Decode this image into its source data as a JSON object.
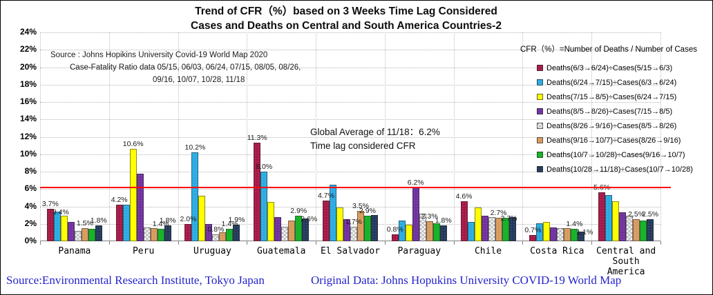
{
  "title": {
    "line1": "Trend of CFR（%）based on 3 Weeks Time Lag Considered",
    "line2": "Cases and Deaths on Central and South America Countries-2"
  },
  "source_note": {
    "line1": "Source : Johns Hopikins University   Covid-19 World Map 2020",
    "line2": "Case-Fatality Ratio data   05/15, 06/03, 06/24,  07/15, 08/05, 08/26,",
    "line3": "09/16, 10/07, 10/28,  11/18"
  },
  "annotation": {
    "line1": "Global Average of 11/18：6.2%",
    "line2": "Time lag considered CFR"
  },
  "legend": {
    "title": "CFR（%）=Number of  Deaths / Number of Cases"
  },
  "footer": {
    "left": "Source:Environmental Research Institute, Tokyo Japan",
    "right": "Original Data: Johns Hopukins University COVID-19 World Map",
    "color": "#2323CC"
  },
  "chart_data": {
    "type": "bar",
    "title": "Trend of CFR（%）based on 3 Weeks Time Lag Considered Cases and Deaths on Central and South America Countries-2",
    "ylabel": "CFR (%)",
    "ylim": [
      0,
      24
    ],
    "ytick_step": 2,
    "ytick_labels": [
      "0%",
      "2%",
      "4%",
      "6%",
      "8%",
      "10%",
      "12%",
      "14%",
      "16%",
      "18%",
      "20%",
      "22%",
      "24%"
    ],
    "grid": true,
    "legend_position": "right",
    "reference_line": {
      "value": 6.2,
      "color": "#FF0000",
      "label": "Global Average of 11/18：6.2% Time lag considered CFR"
    },
    "categories": [
      "Panama",
      "Peru",
      "Uruguay",
      "Guatemala",
      "El Salvador",
      "Paraguay",
      "Chile",
      "Costa Rica",
      "Central and South America"
    ],
    "categories_display": [
      "Panama",
      "Peru",
      "Uruguay",
      "Guatemala",
      "El Salvador",
      "Paraguay",
      "Chile",
      "Costa Rica",
      "Central and\nSouth\nAmerica"
    ],
    "series": [
      {
        "name": "Deaths(6/3→6/24)÷Cases(5/15→6/3)",
        "color": "#A61745",
        "values": [
          3.7,
          4.2,
          2.0,
          11.3,
          4.7,
          0.8,
          4.6,
          0.7,
          5.6
        ],
        "labels": [
          "3.7%",
          "4.2%",
          "2.0%",
          "11.3%",
          "4.7%",
          "0.8%",
          "4.6%",
          "0.7%",
          "5.6%"
        ]
      },
      {
        "name": "Deaths(6/24→7/15)÷Cases(6/3→6/24)",
        "color": "#29ABE2",
        "values": [
          3.4,
          4.2,
          10.2,
          8.0,
          6.5,
          2.4,
          2.2,
          2.1,
          5.3
        ],
        "labels": [
          "3.4%",
          "",
          "10.2%",
          "8.0%",
          "",
          "",
          "",
          "",
          ""
        ]
      },
      {
        "name": "Deaths(7/15→8/5)÷Cases(6/24→7/15)",
        "color": "#FFFF00",
        "values": [
          2.9,
          10.6,
          5.2,
          4.5,
          3.9,
          1.9,
          3.9,
          2.2,
          4.6
        ],
        "labels": [
          "",
          "10.6%",
          "",
          "",
          "",
          "",
          "",
          "",
          ""
        ]
      },
      {
        "name": "Deaths(8/5→8/26)÷Cases(7/15→8/5)",
        "color": "#7030A0",
        "values": [
          2.2,
          7.8,
          2.0,
          2.8,
          2.5,
          6.2,
          2.9,
          1.6,
          3.3
        ],
        "labels": [
          "",
          "",
          "",
          "",
          "",
          "6.2%",
          "",
          "",
          ""
        ]
      },
      {
        "name": "Deaths(8/26→9/16)÷Cases(8/5→8/26)",
        "color": "#DCDCDC",
        "values": [
          1.2,
          1.6,
          0.8,
          1.7,
          1.7,
          3.2,
          2.8,
          1.5,
          2.9
        ],
        "labels": [
          "",
          "",
          "0.8%",
          "",
          "1.7%",
          "",
          "",
          "",
          ""
        ]
      },
      {
        "name": "Deaths(9/16→10/7)÷Cases(8/26→9/16)",
        "color": "#D69A5D",
        "values": [
          1.5,
          1.5,
          1.0,
          2.4,
          3.5,
          2.3,
          2.7,
          1.5,
          2.5
        ],
        "labels": [
          "1.5%",
          "",
          "",
          "",
          "3.5%",
          "2.3%",
          "2.7%",
          "",
          "2.5%"
        ]
      },
      {
        "name": "Deaths(10/7→10/28)÷Cases(9/16→10/7)",
        "color": "#17B42A",
        "values": [
          1.4,
          1.4,
          1.4,
          2.9,
          2.9,
          2.1,
          2.7,
          1.4,
          2.4
        ],
        "labels": [
          "",
          "1.4%",
          "1.4%",
          "2.9%",
          "2.9%",
          "",
          "2.7%",
          "1.4%",
          ""
        ]
      },
      {
        "name": "Deaths(10/28→11/18)÷Cases(10/7→10/28)",
        "color": "#23395B",
        "values": [
          1.8,
          1.8,
          1.9,
          2.6,
          3.0,
          1.8,
          2.8,
          1.1,
          2.5
        ],
        "labels": [
          "1.8%",
          "1.8%",
          "1.9%",
          "2.6%",
          "",
          "1.8%",
          "",
          "1.1%",
          "2.5%"
        ]
      }
    ]
  }
}
